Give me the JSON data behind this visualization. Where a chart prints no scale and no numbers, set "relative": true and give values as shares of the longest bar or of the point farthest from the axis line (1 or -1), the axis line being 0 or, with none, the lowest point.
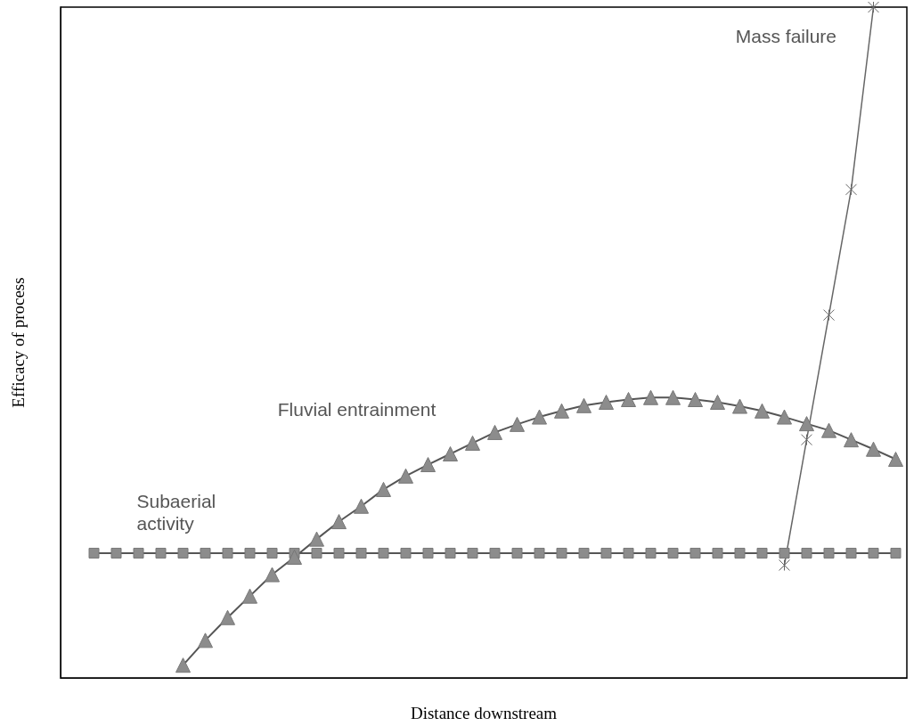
{
  "chart_data": {
    "type": "line",
    "relative": true,
    "xlabel": "Distance downstream",
    "ylabel": "Efficacy of process",
    "grid": false,
    "legend": false,
    "categories": [
      null,
      null,
      null,
      null,
      null,
      null,
      null,
      null,
      null,
      null,
      null,
      null,
      null,
      null,
      null,
      null,
      null,
      null,
      null,
      null,
      null,
      null,
      null,
      null,
      null,
      null,
      null,
      null,
      null,
      null,
      null,
      null,
      null,
      null,
      null,
      null,
      null,
      null
    ],
    "series": [
      {
        "name": "Subaerial\nactivity",
        "color": "#8c8c8c",
        "marker": "square",
        "values": [
          null,
          0.186,
          0.186,
          0.186,
          0.186,
          0.186,
          0.186,
          0.186,
          0.186,
          0.186,
          0.186,
          0.186,
          0.186,
          0.186,
          0.186,
          0.186,
          0.186,
          0.186,
          0.186,
          0.186,
          0.186,
          0.186,
          0.186,
          0.186,
          0.186,
          0.186,
          0.186,
          0.186,
          0.186,
          0.186,
          0.186,
          0.186,
          0.186,
          0.186,
          0.186,
          0.186,
          0.186,
          0.186
        ]
      },
      {
        "name": "Fluvial entrainment",
        "color": "#8c8c8c",
        "marker": "triangle",
        "values": [
          null,
          null,
          null,
          null,
          null,
          0.019,
          0.056,
          0.09,
          0.122,
          0.154,
          0.18,
          0.207,
          0.233,
          0.256,
          0.281,
          0.301,
          0.318,
          0.334,
          0.35,
          0.366,
          0.378,
          0.389,
          0.398,
          0.406,
          0.411,
          0.415,
          0.418,
          0.418,
          0.415,
          0.411,
          0.405,
          0.398,
          0.389,
          0.379,
          0.369,
          0.355,
          0.341,
          0.326
        ]
      },
      {
        "name": "Mass failure",
        "color": "#666666",
        "marker": "cross",
        "values": [
          null,
          null,
          null,
          null,
          null,
          null,
          null,
          null,
          null,
          null,
          null,
          null,
          null,
          null,
          null,
          null,
          null,
          null,
          null,
          null,
          null,
          null,
          null,
          null,
          null,
          null,
          null,
          null,
          null,
          null,
          null,
          null,
          0.168,
          0.355,
          0.541,
          0.728,
          1.0,
          null
        ]
      }
    ]
  }
}
